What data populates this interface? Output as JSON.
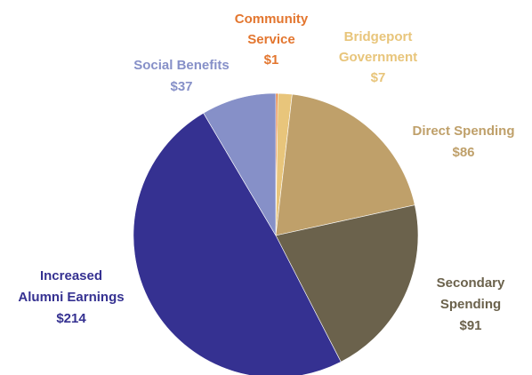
{
  "chart_data": {
    "type": "pie",
    "title": "",
    "legend": "none",
    "slices": [
      {
        "label_lines": [
          "Community",
          "Service"
        ],
        "value_label": "$1",
        "value": 1,
        "color": "#E3762F"
      },
      {
        "label_lines": [
          "Bridgeport",
          "Government"
        ],
        "value_label": "$7",
        "value": 7,
        "color": "#E8C57B"
      },
      {
        "label_lines": [
          "Direct Spending"
        ],
        "value_label": "$86",
        "value": 86,
        "color": "#BFA06A"
      },
      {
        "label_lines": [
          "Secondary",
          "Spending"
        ],
        "value_label": "$91",
        "value": 91,
        "color": "#6B624C"
      },
      {
        "label_lines": [
          "Increased",
          "Alumni Earnings"
        ],
        "value_label": "$214",
        "value": 214,
        "color": "#353191"
      },
      {
        "label_lines": [
          "Social Benefits"
        ],
        "value_label": "$37",
        "value": 37,
        "color": "#8690C8"
      }
    ]
  }
}
